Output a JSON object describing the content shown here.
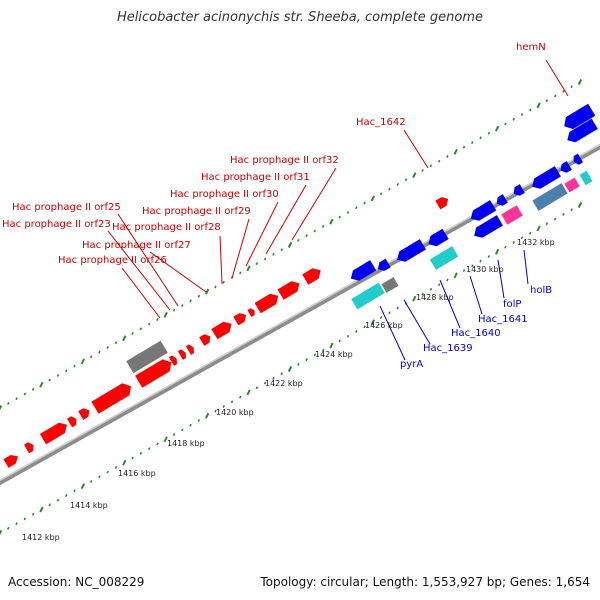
{
  "title": "Helicobacter acinonychis str. Sheeba, complete genome",
  "footer": {
    "accession": "Accession: NC_008229",
    "summary": "Topology: circular; Length: 1,553,927 bp; Genes: 1,654"
  },
  "colors": {
    "backbone": "#8c8c8c",
    "tick": "#2a8a2a",
    "red_gene": "#ff0000",
    "red_label": "#cc0000",
    "blue_gene": "#0000ee",
    "blue_label": "#0000cc",
    "gray_gene": "#777777",
    "cyan_gene": "#22cccc",
    "magenta_gene": "#ff3399",
    "steel_gene": "#4a7fb0"
  },
  "scale_labels": [
    {
      "text": "1412 kbp",
      "kbp": 1412
    },
    {
      "text": "1414 kbp",
      "kbp": 1414
    },
    {
      "text": "1416 kbp",
      "kbp": 1416
    },
    {
      "text": "1418 kbp",
      "kbp": 1418
    },
    {
      "text": "1420 kbp",
      "kbp": 1420
    },
    {
      "text": "1422 kbp",
      "kbp": 1422
    },
    {
      "text": "1424 kbp",
      "kbp": 1424
    },
    {
      "text": "1426 kbp",
      "kbp": 1426
    },
    {
      "text": "1428 kbp",
      "kbp": 1428
    },
    {
      "text": "1430 kbp",
      "kbp": 1430
    },
    {
      "text": "1432 kbp",
      "kbp": 1432
    }
  ],
  "gene_labels": [
    {
      "text": "hemN",
      "color": "red"
    },
    {
      "text": "Hac_1642",
      "color": "red"
    },
    {
      "text": "Hac prophage II orf32",
      "color": "red"
    },
    {
      "text": "Hac prophage II orf31",
      "color": "red"
    },
    {
      "text": "Hac prophage II orf30",
      "color": "red"
    },
    {
      "text": "Hac prophage II orf29",
      "color": "red"
    },
    {
      "text": "Hac prophage II orf28",
      "color": "red"
    },
    {
      "text": "Hac prophage II orf25",
      "color": "red"
    },
    {
      "text": "Hac prophage II orf23",
      "color": "red"
    },
    {
      "text": "Hac prophage II orf27",
      "color": "red"
    },
    {
      "text": "Hac prophage II orf26",
      "color": "red"
    },
    {
      "text": "holB",
      "color": "blue"
    },
    {
      "text": "folP",
      "color": "blue"
    },
    {
      "text": "Hac_1641",
      "color": "blue"
    },
    {
      "text": "Hac_1640",
      "color": "blue"
    },
    {
      "text": "Hac_1639",
      "color": "blue"
    },
    {
      "text": "pyrA",
      "color": "blue"
    }
  ]
}
